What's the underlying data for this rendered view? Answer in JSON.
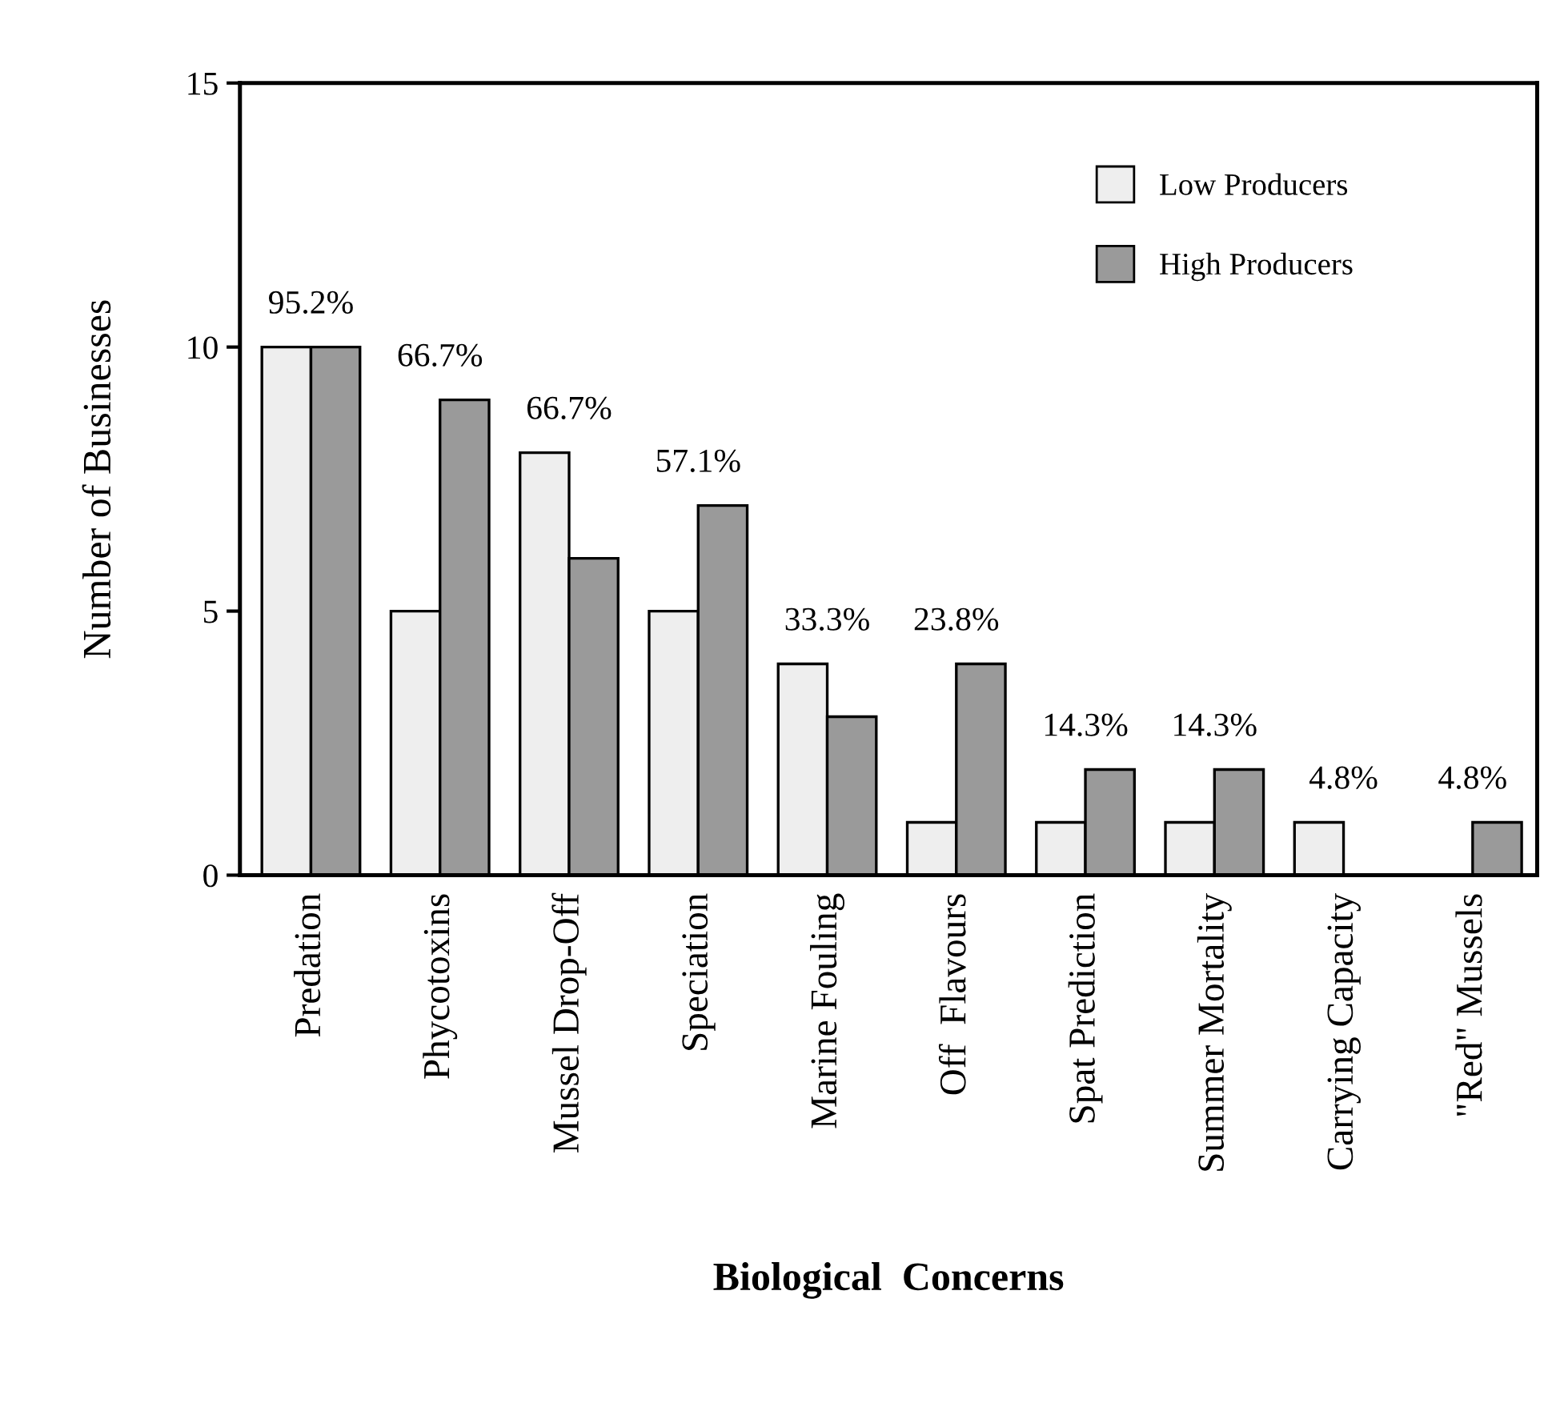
{
  "chart_data": {
    "type": "bar",
    "xlabel": "Biological  Concerns",
    "ylabel": "Number of Businesses",
    "categories": [
      "Predation",
      "Phycotoxins",
      "Mussel Drop-Off",
      "Speciation",
      "Marine Fouling",
      "Off  Flavours",
      "Spat Prediction",
      "Summer Mortality",
      "Carrying Capacity",
      "\"Red\" Mussels"
    ],
    "series": [
      {
        "name": "Low Producers",
        "color": "#eeeeee",
        "values": [
          10,
          5,
          8,
          5,
          4,
          1,
          1,
          1,
          1,
          0
        ]
      },
      {
        "name": "High Producers",
        "color": "#9a9a9a",
        "values": [
          10,
          9,
          6,
          7,
          3,
          4,
          2,
          2,
          0,
          1
        ]
      }
    ],
    "ylim": [
      0,
      15
    ],
    "yticks": [
      0,
      5,
      10,
      15
    ],
    "grid": false,
    "legend": "top right",
    "annotations": [
      {
        "text": "95.2%",
        "x": "Predation",
        "y": 10
      },
      {
        "text": "66.7%",
        "x": "Phycotoxins",
        "y": 9
      },
      {
        "text": "66.7%",
        "x": "Mussel Drop-Off",
        "y": 8
      },
      {
        "text": "57.1%",
        "x": "Speciation",
        "y": 7
      },
      {
        "text": "33.3%",
        "x": "Marine Fouling",
        "y": 4
      },
      {
        "text": "23.8%",
        "x": "Off  Flavours",
        "y": 4
      },
      {
        "text": "14.3%",
        "x": "Spat Prediction",
        "y": 2
      },
      {
        "text": "14.3%",
        "x": "Summer Mortality",
        "y": 2
      },
      {
        "text": "4.8%",
        "x": "Carrying Capacity",
        "y": 1
      },
      {
        "text": "4.8%",
        "x": "\"Red\" Mussels",
        "y": 1
      }
    ]
  }
}
